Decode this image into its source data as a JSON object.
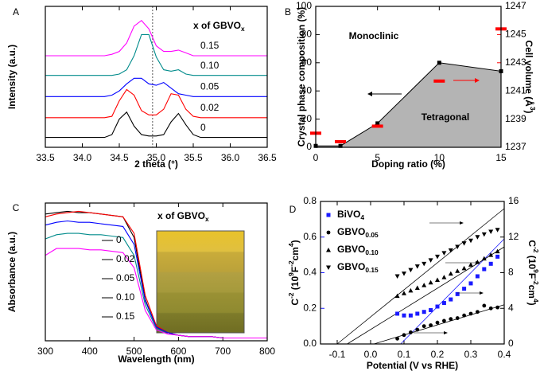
{
  "chart_data": [
    {
      "type": "line",
      "label": "A",
      "xlabel": "2 theta (°)",
      "ylabel": "Intensity (a.u.)",
      "xlim": [
        33.5,
        36.5
      ],
      "xticks": [
        33.5,
        {
          "value": 34,
          "label": "34.0"
        },
        34.5,
        {
          "value": 35,
          "label": "35.0"
        },
        35.5,
        {
          "value": 36,
          "label": "36.0"
        },
        36.5
      ],
      "ylim": [
        0,
        100
      ],
      "vline": 34.95,
      "legend_title": [
        "x of GBVO",
        {
          "t": "x",
          "s": "sub"
        }
      ],
      "x": [
        33.5,
        33.6,
        33.7,
        33.8,
        33.9,
        34.0,
        34.1,
        34.2,
        34.3,
        34.4,
        34.5,
        34.6,
        34.7,
        34.8,
        34.9,
        35.0,
        35.1,
        35.2,
        35.3,
        35.4,
        35.5,
        35.6,
        35.7,
        35.8,
        35.9,
        36.0,
        36.1,
        36.2,
        36.3,
        36.4,
        36.5
      ],
      "series": [
        {
          "name": "0.15",
          "color": "#ff00ff",
          "values": [
            65,
            65,
            65,
            65,
            65,
            65,
            65,
            65,
            65,
            66,
            68,
            74,
            86,
            90,
            84,
            72,
            68,
            68,
            69,
            67,
            65,
            65,
            65,
            65,
            65,
            65,
            65,
            65,
            65,
            65,
            65
          ]
        },
        {
          "name": "0.10",
          "color": "#008b8b",
          "values": [
            51,
            51,
            51,
            51,
            51,
            51,
            51,
            51,
            51,
            51,
            52,
            55,
            65,
            80,
            80,
            64,
            55,
            54,
            55,
            52,
            51,
            51,
            51,
            51,
            51,
            51,
            51,
            51,
            51,
            51,
            51
          ]
        },
        {
          "name": "0.05",
          "color": "#0000ff",
          "values": [
            36,
            36,
            36,
            36,
            36,
            36,
            36,
            36,
            36,
            37,
            40,
            45,
            49,
            49,
            45,
            44,
            46,
            42,
            38,
            37,
            36,
            36,
            36,
            36,
            36,
            36,
            36,
            36,
            36,
            36,
            36
          ]
        },
        {
          "name": "0.02",
          "color": "#ff0000",
          "values": [
            21,
            21,
            21,
            21,
            21,
            21,
            21,
            21,
            21,
            22,
            33,
            41,
            37,
            26,
            23,
            23,
            27,
            38,
            37,
            27,
            22,
            21,
            21,
            21,
            21,
            21,
            21,
            21,
            21,
            21,
            21
          ]
        },
        {
          "name": "0",
          "color": "#000000",
          "values": [
            7,
            7,
            7,
            7,
            7,
            7,
            7,
            7,
            7,
            9,
            20,
            25,
            15,
            9,
            8,
            8,
            9,
            18,
            24,
            16,
            9,
            7,
            7,
            7,
            7,
            7,
            7,
            7,
            7,
            7,
            7
          ]
        }
      ]
    },
    {
      "type": "area",
      "label": "B",
      "xlabel": "Doping ratio (%)",
      "ylabel": "Crystal phase composition (%)",
      "y2label": [
        "Cell volume (Å",
        {
          "t": "3",
          "s": "sup"
        },
        ")"
      ],
      "y2_color": "#ff0000",
      "xlim": [
        0,
        15
      ],
      "xticks": [
        0,
        5,
        10,
        15
      ],
      "ylim": [
        0,
        100
      ],
      "yticks": [
        0,
        20,
        40,
        60,
        80,
        100
      ],
      "y2lim": [
        1237,
        1247
      ],
      "y2ticks": [
        1237,
        1239,
        1241,
        1243,
        1245,
        1247
      ],
      "annotations": [
        "Monoclinic",
        "Tetragonal"
      ],
      "x": [
        0,
        2,
        5,
        10,
        15
      ],
      "series": [
        {
          "color": "#000000",
          "fill": "#b4b4b4",
          "marker": "square",
          "values": [
            1,
            1,
            17,
            60,
            54
          ]
        },
        {
          "color": "#ff0000",
          "axis": "y2",
          "marker": "dash",
          "values": [
            1238.0,
            1237.4,
            1238.5,
            1241.7,
            1245.4
          ]
        }
      ]
    },
    {
      "type": "line",
      "label": "C",
      "xlabel": "Wavelength (nm)",
      "ylabel": "Absorbance (a.u.)",
      "xlim": [
        300,
        800
      ],
      "xticks": [
        300,
        400,
        500,
        600,
        700,
        800
      ],
      "ylim": [
        0,
        100
      ],
      "legend_title": [
        "x of GBVO",
        {
          "t": "x",
          "s": "sub"
        }
      ],
      "x": [
        300,
        325,
        350,
        375,
        400,
        425,
        450,
        475,
        500,
        525,
        550,
        575,
        600,
        625,
        650,
        675,
        700,
        725,
        750,
        775,
        800
      ],
      "series": [
        {
          "name": "0",
          "color": "#000000",
          "values": [
            92,
            93,
            94,
            93,
            93,
            92,
            91,
            90,
            75,
            30,
            10,
            6,
            4,
            3,
            3,
            3,
            2,
            2,
            2,
            2,
            2
          ]
        },
        {
          "name": "0.02",
          "color": "#ff0000",
          "values": [
            90,
            92,
            93,
            94,
            93,
            92,
            91,
            90,
            78,
            33,
            11,
            6,
            4,
            3,
            3,
            3,
            2,
            2,
            2,
            2,
            2
          ]
        },
        {
          "name": "0.05",
          "color": "#0000ff",
          "values": [
            84,
            86,
            87,
            86,
            86,
            85,
            84,
            83,
            70,
            29,
            10,
            6,
            4,
            3,
            3,
            3,
            2,
            2,
            2,
            2,
            2
          ]
        },
        {
          "name": "0.10",
          "color": "#008b8b",
          "values": [
            74,
            77,
            78,
            78,
            77,
            77,
            76,
            75,
            62,
            26,
            9,
            5,
            4,
            3,
            3,
            3,
            2,
            2,
            2,
            2,
            2
          ]
        },
        {
          "name": "0.15",
          "color": "#ff00ff",
          "values": [
            62,
            67,
            67,
            67,
            66,
            66,
            65,
            64,
            53,
            22,
            8,
            5,
            4,
            3,
            3,
            3,
            2,
            2,
            2,
            2,
            2
          ]
        }
      ]
    },
    {
      "type": "scatter",
      "label": "D",
      "xlabel": "Potential (V vs RHE)",
      "ylabel": [
        "C",
        {
          "t": "-2",
          "s": "sup"
        },
        " (10",
        {
          "t": "9",
          "s": "sup"
        },
        "F",
        {
          "t": "-2",
          "s": "sup"
        },
        "cm",
        {
          "t": "4",
          "s": "sup"
        },
        ")"
      ],
      "y2label": [
        "C",
        {
          "t": "-2",
          "s": "sup"
        },
        " (10",
        {
          "t": "9",
          "s": "sup"
        },
        "F",
        {
          "t": "-2",
          "s": "sup"
        },
        "cm",
        {
          "t": "4",
          "s": "sup"
        },
        ")"
      ],
      "y_color": "#1a1aff",
      "xlim": [
        -0.15,
        0.4
      ],
      "xticks": [
        -0.1,
        {
          "value": 0,
          "label": "0.0"
        },
        0.1,
        0.2,
        0.3,
        0.4
      ],
      "ylim": [
        0,
        0.8
      ],
      "yticks": [
        {
          "value": 0,
          "label": "0.0"
        },
        0.2,
        0.4,
        0.6,
        0.8
      ],
      "y2lim": [
        0,
        16
      ],
      "y2ticks": [
        0,
        4,
        8,
        12,
        16
      ],
      "x": [
        0.08,
        0.1,
        0.12,
        0.14,
        0.16,
        0.18,
        0.2,
        0.22,
        0.24,
        0.26,
        0.28,
        0.3,
        0.32,
        0.34,
        0.36,
        0.38
      ],
      "series": [
        {
          "name": [
            "BiVO",
            {
              "t": "4",
              "s": "sub"
            }
          ],
          "color": "#1a1aff",
          "marker": "square",
          "values": [
            0.17,
            0.16,
            0.16,
            0.17,
            0.18,
            0.19,
            0.21,
            0.23,
            0.25,
            0.28,
            0.31,
            0.34,
            0.38,
            0.42,
            0.45,
            0.49
          ]
        },
        {
          "name": [
            "GBVO",
            {
              "t": "0.05",
              "s": "sub"
            }
          ],
          "color": "#000000",
          "marker": "circle",
          "axis": "y2",
          "values": [
            0.6,
            1.0,
            1.3,
            1.6,
            2.0,
            2.1,
            2.4,
            2.6,
            2.8,
            2.9,
            3.2,
            3.4,
            3.6,
            4.3,
            4.0,
            4.1
          ]
        },
        {
          "name": [
            "GBVO",
            {
              "t": "0.10",
              "s": "sub"
            }
          ],
          "color": "#000000",
          "marker": "triangle-up",
          "axis": "y2",
          "values": [
            5.4,
            5.7,
            6.0,
            6.3,
            6.6,
            6.9,
            7.2,
            7.5,
            7.9,
            8.2,
            8.5,
            8.9,
            9.2,
            9.6,
            10.0,
            10.4
          ]
        },
        {
          "name": [
            "GBVO",
            {
              "t": "0.15",
              "s": "sub"
            }
          ],
          "color": "#000000",
          "marker": "triangle-down",
          "axis": "y2",
          "values": [
            7.6,
            7.9,
            8.3,
            8.7,
            9.0,
            9.4,
            9.8,
            10.2,
            10.5,
            10.9,
            11.3,
            11.6,
            12.0,
            12.3,
            12.6,
            12.8
          ]
        }
      ],
      "fit_lines": [
        {
          "color": "#1a1aff",
          "x": [
            0.09,
            0.4
          ],
          "values": [
            0,
            0.59
          ]
        },
        {
          "color": "#000000",
          "axis": "y2",
          "x": [
            0.01,
            0.4
          ],
          "values": [
            0,
            4.4
          ]
        },
        {
          "color": "#000000",
          "axis": "y2",
          "x": [
            -0.07,
            0.4
          ],
          "values": [
            0,
            10.9
          ]
        },
        {
          "color": "#000000",
          "axis": "y2",
          "x": [
            -0.1,
            0.4
          ],
          "values": [
            0,
            15.2
          ]
        }
      ]
    }
  ]
}
